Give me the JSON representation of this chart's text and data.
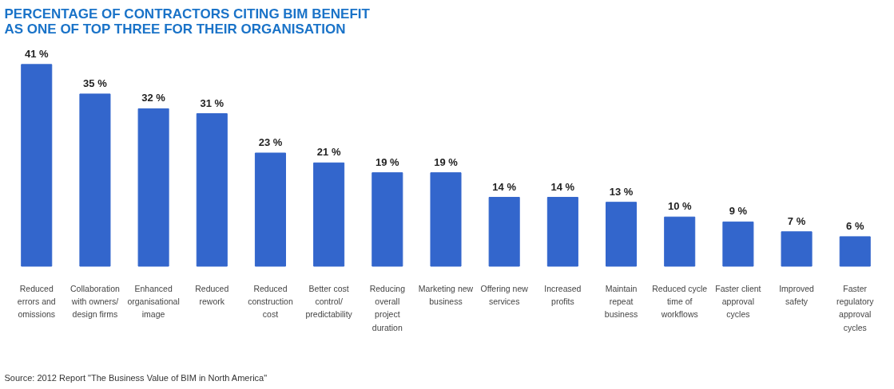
{
  "chart_data": {
    "type": "bar",
    "title": "PERCENTAGE OF CONTRACTORS CITING BIM BENEFIT AS ONE OF TOP THREE FOR THEIR ORGANISATION",
    "categories": [
      "Reduced errors and omissions",
      "Collaboration with owners/ design firms",
      "Enhanced organisational image",
      "Reduced rework",
      "Reduced construction cost",
      "Better cost control/ predictability",
      "Reducing overall project duration",
      "Marketing new business",
      "Offering new services",
      "Increased profits",
      "Maintain repeat business",
      "Reduced cycle time of workflows",
      "Faster client approval cycles",
      "Improved safety",
      "Faster regulatory approval cycles"
    ],
    "values": [
      41,
      35,
      32,
      31,
      23,
      21,
      19,
      19,
      14,
      14,
      13,
      10,
      9,
      7,
      6
    ],
    "value_labels": [
      "41 %",
      "35 %",
      "32 %",
      "31 %",
      "23 %",
      "21 %",
      "19 %",
      "19 %",
      "14 %",
      "14 %",
      "13 %",
      "10 %",
      "9 %",
      "7 %",
      "6 %"
    ],
    "color": "#3366cc",
    "grid": false,
    "annotations": [
      "Source: 2012 Report \"The Business Value of BIM in North America\""
    ]
  }
}
